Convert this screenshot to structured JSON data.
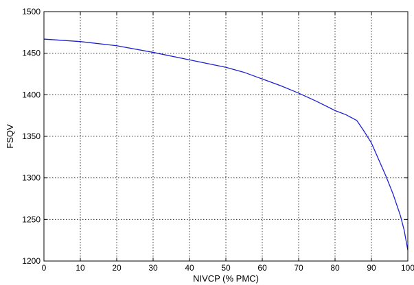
{
  "chart_data": {
    "type": "line",
    "xlabel": "NIVCP (% PMC)",
    "ylabel": "FSQV",
    "xlim": [
      0,
      100
    ],
    "ylim": [
      1200,
      1500
    ],
    "xticks": [
      0,
      10,
      20,
      30,
      40,
      50,
      60,
      70,
      80,
      90,
      100
    ],
    "yticks": [
      1200,
      1250,
      1300,
      1350,
      1400,
      1450,
      1500
    ],
    "grid": true,
    "series": [
      {
        "color": "#1f1fd0",
        "x": [
          0,
          10,
          20,
          30,
          40,
          50,
          55,
          60,
          65,
          70,
          75,
          80,
          83,
          86,
          88,
          90,
          92,
          94,
          96,
          98,
          99,
          100
        ],
        "y": [
          1467,
          1464,
          1459,
          1451,
          1442,
          1433,
          1427,
          1419,
          1411,
          1402,
          1392,
          1381,
          1376,
          1369,
          1356,
          1342,
          1322,
          1302,
          1280,
          1254,
          1237,
          1213
        ]
      }
    ]
  }
}
